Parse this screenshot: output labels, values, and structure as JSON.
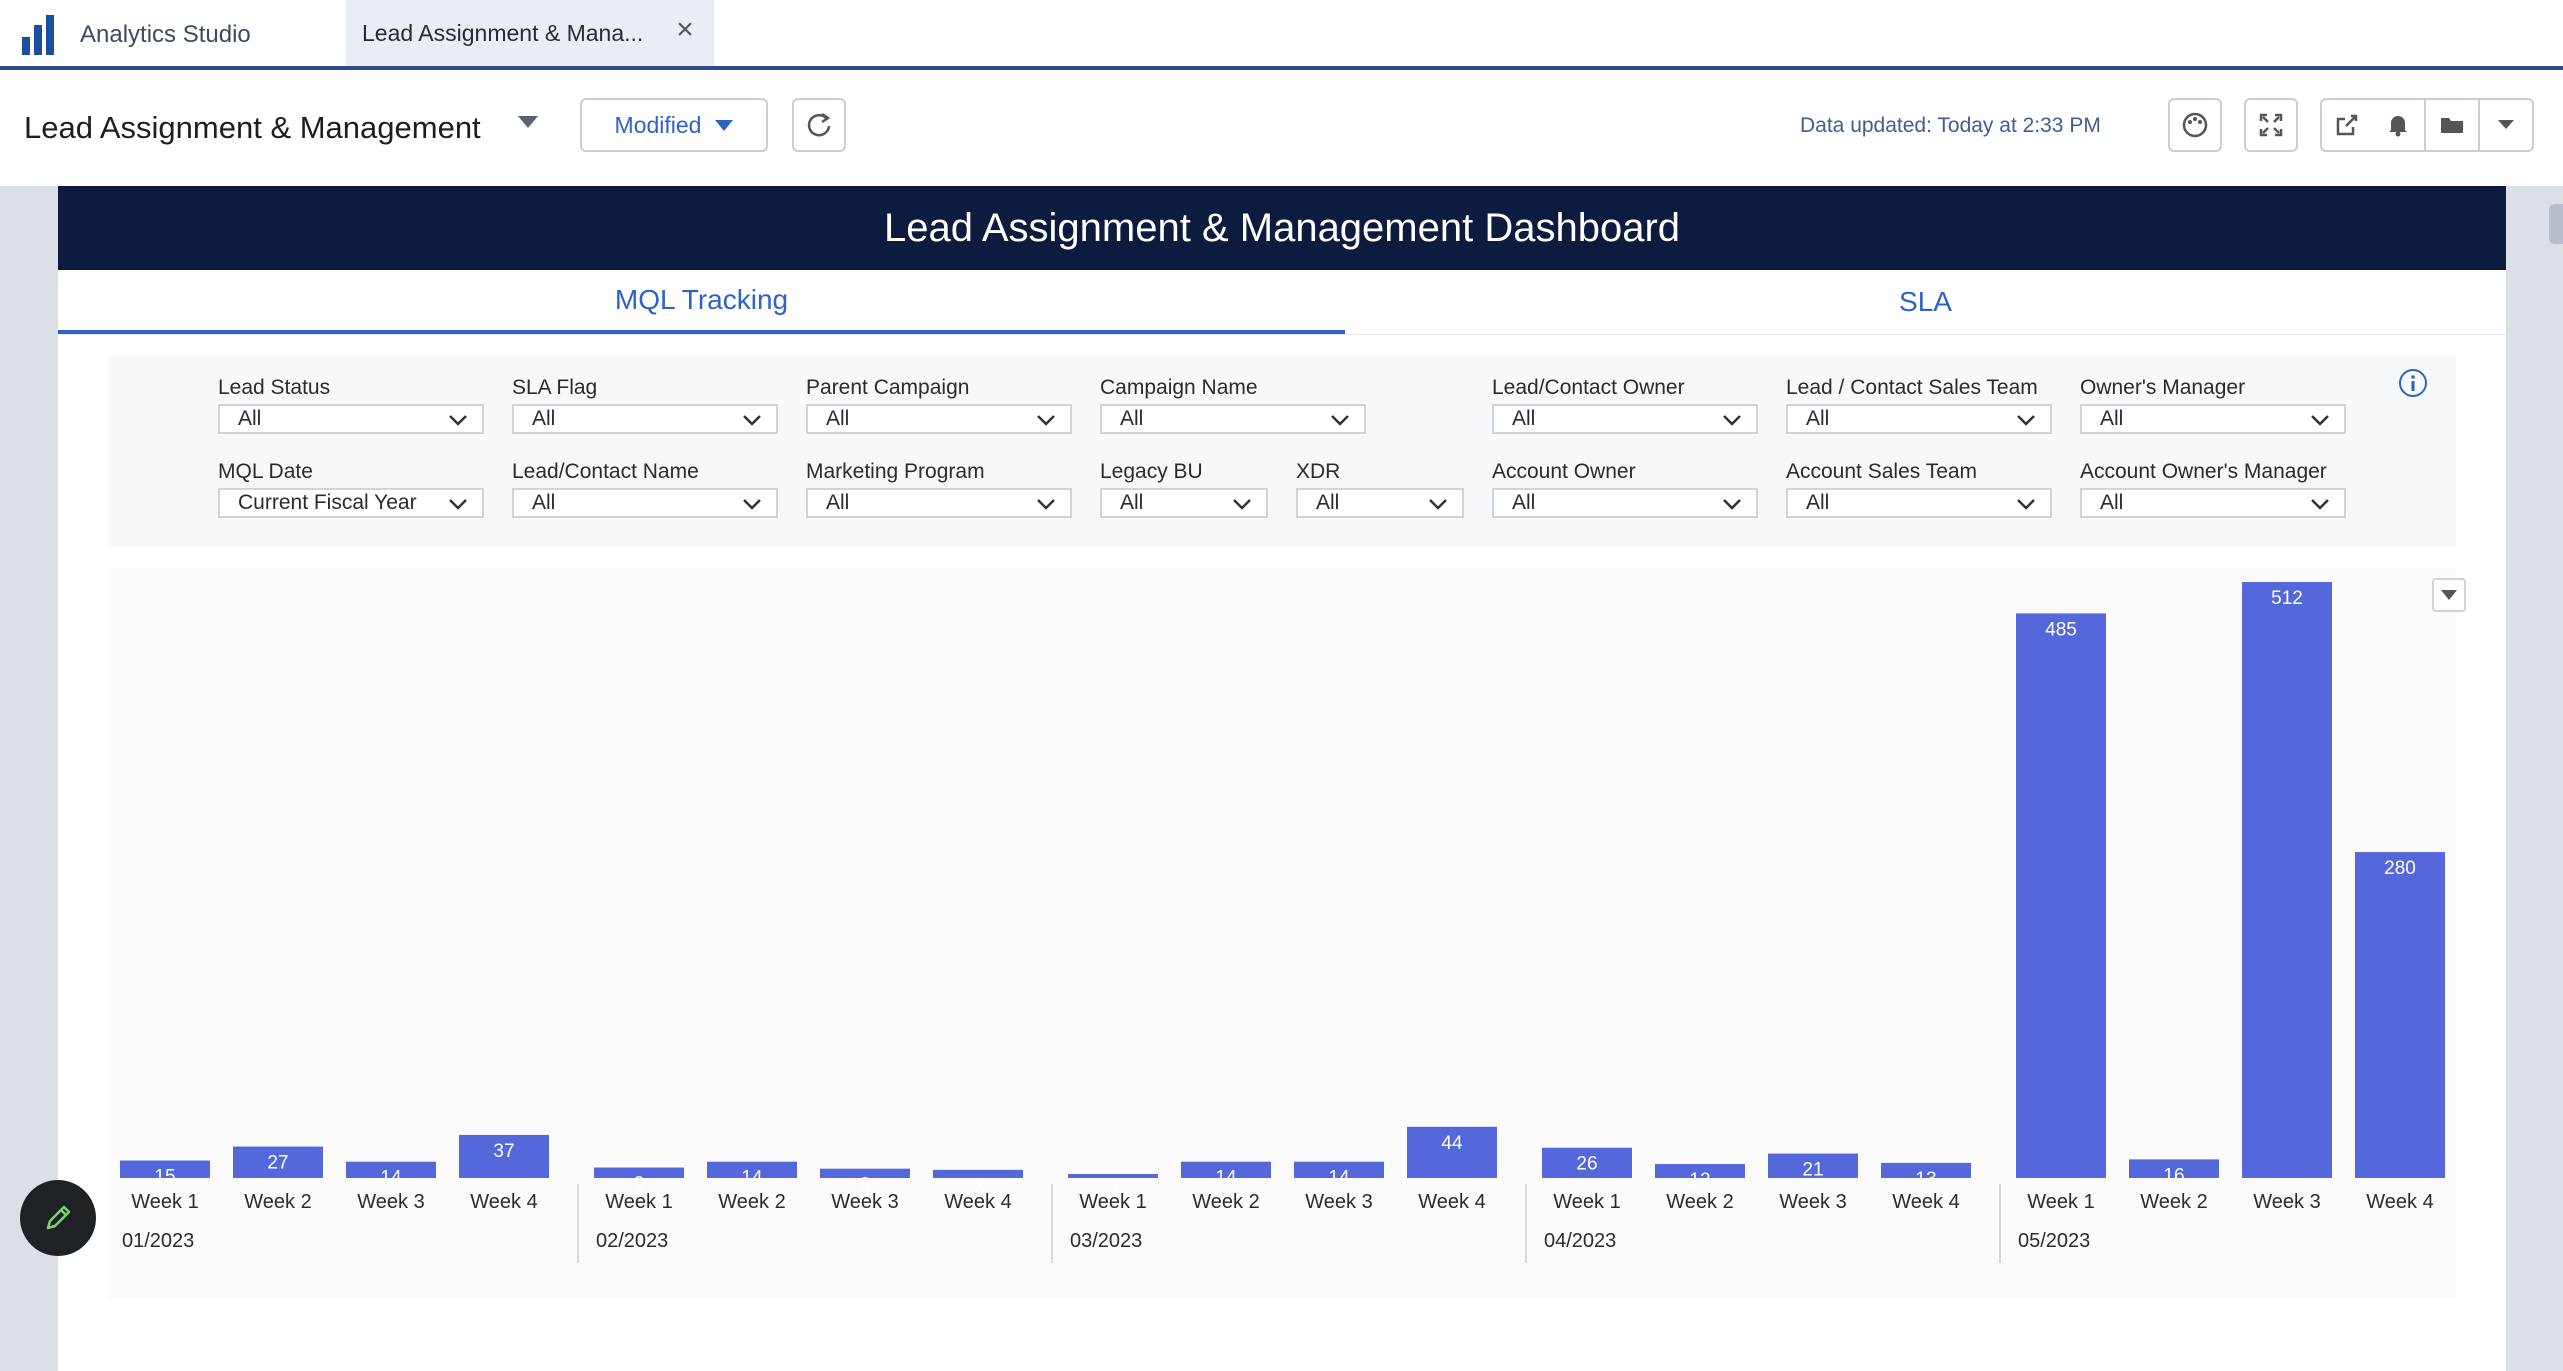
{
  "app": {
    "name": "Analytics Studio",
    "tab_label": "Lead Assignment & Mana...",
    "accent": "#2f4a8a"
  },
  "header": {
    "title": "Lead Assignment & Management",
    "modified_label": "Modified",
    "data_updated": "Data updated: Today at 2:33 PM",
    "icons": [
      "palette-icon",
      "fullscreen-icon",
      "share-icon",
      "bell-icon",
      "folder-icon",
      "chevron-down-icon"
    ]
  },
  "dashboard": {
    "title": "Lead Assignment & Management Dashboard",
    "tabs": [
      {
        "label": "MQL Tracking",
        "active": true
      },
      {
        "label": "SLA",
        "active": false
      }
    ],
    "filters_row1": [
      {
        "label": "Lead Status",
        "value": "All"
      },
      {
        "label": "SLA Flag",
        "value": "All"
      },
      {
        "label": "Parent Campaign",
        "value": "All"
      },
      {
        "label": "Campaign Name",
        "value": "All"
      },
      {
        "label": "Lead/Contact Owner",
        "value": "All"
      },
      {
        "label": "Lead / Contact Sales Team",
        "value": "All"
      },
      {
        "label": "Owner's Manager",
        "value": "All"
      }
    ],
    "filters_row2": [
      {
        "label": "MQL Date",
        "value": "Current Fiscal Year"
      },
      {
        "label": "Lead/Contact Name",
        "value": "All"
      },
      {
        "label": "Marketing Program",
        "value": "All"
      },
      {
        "label": "Legacy BU",
        "value": "All"
      },
      {
        "label": "XDR",
        "value": "All"
      },
      {
        "label": "Account Owner",
        "value": "All"
      },
      {
        "label": "Account Sales Team",
        "value": "All"
      },
      {
        "label": "Account Owner's Manager",
        "value": "All"
      }
    ]
  },
  "chart_data": {
    "type": "bar",
    "bar_color": "#5468dc",
    "groups": [
      {
        "label": "01/2023",
        "weeks": [
          "Week 1",
          "Week 2",
          "Week 3",
          "Week 4"
        ],
        "values": [
          15,
          27,
          14,
          37
        ]
      },
      {
        "label": "02/2023",
        "weeks": [
          "Week 1",
          "Week 2",
          "Week 3",
          "Week 4"
        ],
        "values": [
          9,
          14,
          8,
          7
        ]
      },
      {
        "label": "03/2023",
        "weeks": [
          "Week 1",
          "Week 2",
          "Week 3",
          "Week 4"
        ],
        "values": [
          3,
          14,
          14,
          44
        ]
      },
      {
        "label": "04/2023",
        "weeks": [
          "Week 1",
          "Week 2",
          "Week 3",
          "Week 4"
        ],
        "values": [
          26,
          12,
          21,
          13
        ]
      },
      {
        "label": "05/2023",
        "weeks": [
          "Week 1",
          "Week 2",
          "Week 3",
          "Week 4"
        ],
        "values": [
          485,
          16,
          512,
          280
        ]
      }
    ]
  }
}
